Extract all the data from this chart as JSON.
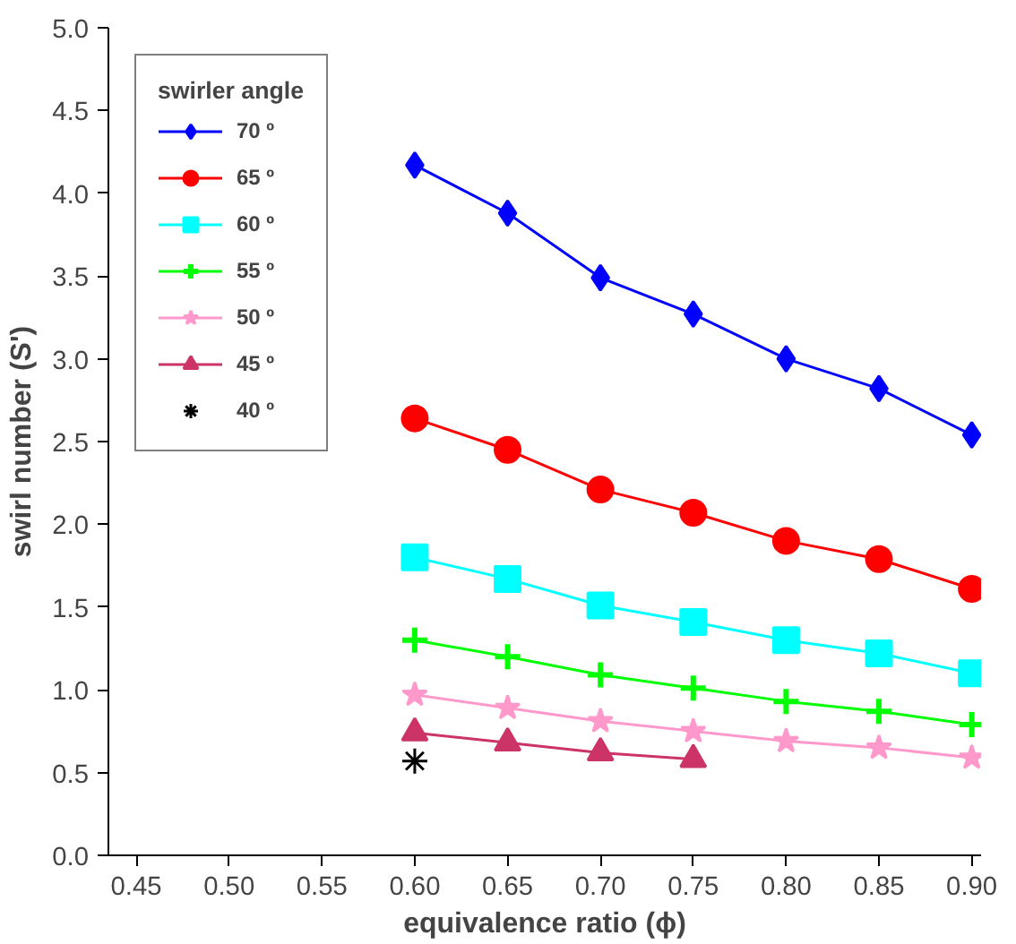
{
  "chart_data": {
    "type": "line",
    "xlabel": "equivalence ratio (ϕ)",
    "ylabel": "swirl number (S')",
    "legend_title": "swirler angle",
    "legend": "top left",
    "grid": false,
    "x": [
      0.6,
      0.65,
      0.7,
      0.75,
      0.8,
      0.85,
      0.9
    ],
    "series": [
      {
        "name": "70 º",
        "color": "#0000ff",
        "marker": "diamond",
        "values": [
          4.17,
          3.88,
          3.49,
          3.27,
          3.0,
          2.82,
          2.54
        ]
      },
      {
        "name": "65 º",
        "color": "#ff0000",
        "marker": "circle",
        "values": [
          2.64,
          2.45,
          2.21,
          2.07,
          1.9,
          1.79,
          1.61
        ]
      },
      {
        "name": "60 º",
        "color": "#00ffff",
        "marker": "square",
        "values": [
          1.8,
          1.67,
          1.51,
          1.41,
          1.3,
          1.22,
          1.1
        ]
      },
      {
        "name": "55 º",
        "color": "#00ff00",
        "marker": "cross",
        "values": [
          1.3,
          1.2,
          1.09,
          1.01,
          0.93,
          0.87,
          0.79
        ]
      },
      {
        "name": "50 º",
        "color": "#ff99cc",
        "marker": "star",
        "values": [
          0.97,
          0.89,
          0.81,
          0.75,
          0.69,
          0.65,
          0.59
        ]
      },
      {
        "name": "45 º",
        "color": "#cc3366",
        "marker": "triangle",
        "values": [
          0.74,
          0.68,
          0.62,
          0.58,
          null,
          null,
          null
        ]
      },
      {
        "name": "40 º",
        "color": "#000000",
        "marker": "cross",
        "type": "scatter",
        "values": [
          0.57,
          null,
          null,
          null,
          null,
          null,
          null
        ]
      }
    ],
    "xlim": [
      0.435,
      0.905
    ],
    "ylim": [
      0,
      5.0
    ],
    "xticks": [
      {
        "value": 0.45,
        "label": "0.45"
      },
      {
        "value": 0.5,
        "label": "0.50"
      },
      {
        "value": 0.55,
        "label": "0.55"
      },
      {
        "value": 0.6,
        "label": "0.60"
      },
      {
        "value": 0.65,
        "label": "0.65"
      },
      {
        "value": 0.7,
        "label": "0.70"
      },
      {
        "value": 0.75,
        "label": "0.75"
      },
      {
        "value": 0.8,
        "label": "0.80"
      },
      {
        "value": 0.85,
        "label": "0.85"
      },
      {
        "value": 0.9,
        "label": "0.90"
      }
    ],
    "yticks": [
      {
        "value": 0,
        "label": "0.0"
      },
      {
        "value": 0.5,
        "label": "0.5"
      },
      {
        "value": 1,
        "label": "1.0"
      },
      {
        "value": 1.5,
        "label": "1.5"
      },
      {
        "value": 2,
        "label": "2.0"
      },
      {
        "value": 2.5,
        "label": "2.5"
      },
      {
        "value": 3,
        "label": "3.0"
      },
      {
        "value": 3.5,
        "label": "3.5"
      },
      {
        "value": 4,
        "label": "4.0"
      },
      {
        "value": 4.5,
        "label": "4.5"
      },
      {
        "value": 5,
        "label": "5.0"
      }
    ]
  }
}
